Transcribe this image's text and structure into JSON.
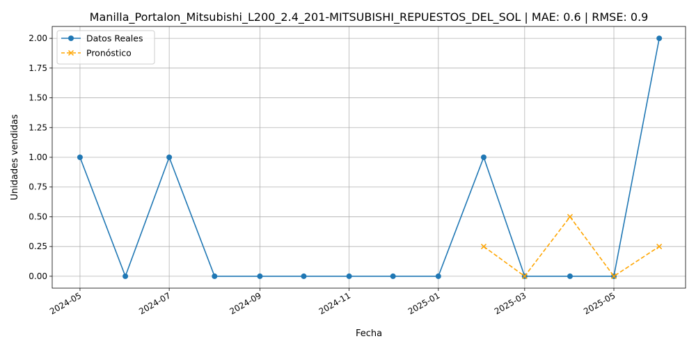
{
  "chart_data": {
    "type": "line",
    "title": "Manilla_Portalon_Mitsubishi_L200_2.4_201-MITSUBISHI_REPUESTOS_DEL_SOL | MAE: 0.6 | RMSE: 0.9",
    "xlabel": "Fecha",
    "ylabel": "Unidades vendidas",
    "grid": true,
    "legend_position": "top-left",
    "ylim": [
      -0.1,
      2.1
    ],
    "xlim": [
      "2024-04-12",
      "2025-06-19"
    ],
    "x_ticks": [
      "2024-05",
      "2024-07",
      "2024-09",
      "2024-11",
      "2025-01",
      "2025-03",
      "2025-05"
    ],
    "y_ticks": [
      "0.00",
      "0.25",
      "0.50",
      "0.75",
      "1.00",
      "1.25",
      "1.50",
      "1.75",
      "2.00"
    ],
    "series": [
      {
        "name": "Datos Reales",
        "color": "#1f77b4",
        "style": "solid",
        "marker": "circle",
        "points": [
          {
            "x": "2024-05-01",
            "y": 1
          },
          {
            "x": "2024-06-01",
            "y": 0
          },
          {
            "x": "2024-07-01",
            "y": 1
          },
          {
            "x": "2024-08-01",
            "y": 0
          },
          {
            "x": "2024-09-01",
            "y": 0
          },
          {
            "x": "2024-10-01",
            "y": 0
          },
          {
            "x": "2024-11-01",
            "y": 0
          },
          {
            "x": "2024-12-01",
            "y": 0
          },
          {
            "x": "2025-01-01",
            "y": 0
          },
          {
            "x": "2025-02-01",
            "y": 1
          },
          {
            "x": "2025-03-01",
            "y": 0
          },
          {
            "x": "2025-04-01",
            "y": 0
          },
          {
            "x": "2025-05-01",
            "y": 0
          },
          {
            "x": "2025-06-01",
            "y": 2
          }
        ]
      },
      {
        "name": "Pronóstico",
        "color": "#ffa500",
        "style": "dashed",
        "marker": "x",
        "points": [
          {
            "x": "2025-02-01",
            "y": 0.25
          },
          {
            "x": "2025-03-01",
            "y": 0
          },
          {
            "x": "2025-04-01",
            "y": 0.5
          },
          {
            "x": "2025-05-01",
            "y": 0
          },
          {
            "x": "2025-06-01",
            "y": 0.25
          }
        ]
      }
    ]
  }
}
